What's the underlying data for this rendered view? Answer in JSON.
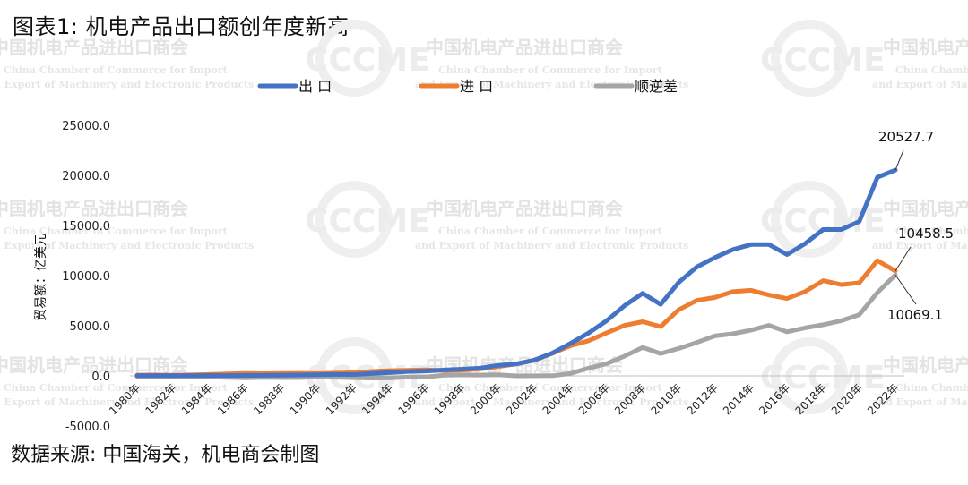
{
  "title": "图表1: 机电产品出口额创年度新高",
  "source": "数据来源: 中国海关，机电商会制图",
  "watermark": {
    "cn": "中国机电产品进出口商会",
    "en1": "China Chamber of Commerce for Import",
    "en2": "and Export of Machinery and Electronic Products",
    "logo": "CCCME"
  },
  "chart_data": {
    "type": "line",
    "ylabel": "贸易额：亿美元",
    "ylim": [
      -5000,
      25000
    ],
    "yticks": [
      "-5000.0",
      "0.0",
      "5000.0",
      "10000.0",
      "15000.0",
      "20000.0",
      "25000.0"
    ],
    "legend_position": "top",
    "x": [
      1980,
      1981,
      1982,
      1983,
      1984,
      1985,
      1986,
      1987,
      1988,
      1989,
      1990,
      1991,
      1992,
      1993,
      1994,
      1995,
      1996,
      1997,
      1998,
      1999,
      2000,
      2001,
      2002,
      2003,
      2004,
      2005,
      2006,
      2007,
      2008,
      2009,
      2010,
      2011,
      2012,
      2013,
      2014,
      2015,
      2016,
      2017,
      2018,
      2019,
      2020,
      2021,
      2022
    ],
    "xtick_labels": [
      "1980年",
      "1982年",
      "1984年",
      "1986年",
      "1988年",
      "1990年",
      "1992年",
      "1994年",
      "1996年",
      "1998年",
      "2000年",
      "2002年",
      "2004年",
      "2006年",
      "2008年",
      "2010年",
      "2012年",
      "2014年",
      "2016年",
      "2018年",
      "2020年",
      "2022年"
    ],
    "series": [
      {
        "name": "出 口",
        "color": "#4472C4",
        "values": [
          15,
          20,
          25,
          30,
          35,
          40,
          45,
          55,
          70,
          85,
          110,
          140,
          130,
          230,
          320,
          440,
          480,
          590,
          670,
          770,
          1050,
          1190,
          1570,
          2270,
          3230,
          4270,
          5490,
          7010,
          8230,
          7130,
          9330,
          10860,
          11800,
          12600,
          13100,
          13100,
          12100,
          13200,
          14600,
          14600,
          15400,
          19800,
          20527.7
        ]
      },
      {
        "name": "进 口",
        "color": "#ED7D31",
        "values": [
          80,
          90,
          70,
          100,
          140,
          200,
          250,
          220,
          250,
          260,
          230,
          280,
          320,
          450,
          530,
          560,
          600,
          530,
          570,
          690,
          930,
          1190,
          1560,
          2250,
          3000,
          3500,
          4280,
          5040,
          5400,
          4910,
          6600,
          7530,
          7820,
          8400,
          8540,
          8060,
          7710,
          8410,
          9500,
          9100,
          9290,
          11500,
          10458.5
        ]
      },
      {
        "name": "顺逆差",
        "color": "#A5A5A5",
        "values": [
          -65,
          -70,
          -45,
          -70,
          -105,
          -160,
          -205,
          -165,
          -180,
          -175,
          -120,
          -140,
          -190,
          -220,
          -210,
          -120,
          -120,
          60,
          100,
          80,
          120,
          0,
          10,
          20,
          230,
          770,
          1210,
          1970,
          2830,
          2220,
          2730,
          3330,
          3980,
          4200,
          4560,
          5040,
          4390,
          4790,
          5100,
          5500,
          6100,
          8300,
          10069.1
        ]
      }
    ],
    "annotations": [
      {
        "series": "出 口",
        "label": "20527.7"
      },
      {
        "series": "进 口",
        "label": "10458.5"
      },
      {
        "series": "顺逆差",
        "label": "10069.1"
      }
    ]
  }
}
